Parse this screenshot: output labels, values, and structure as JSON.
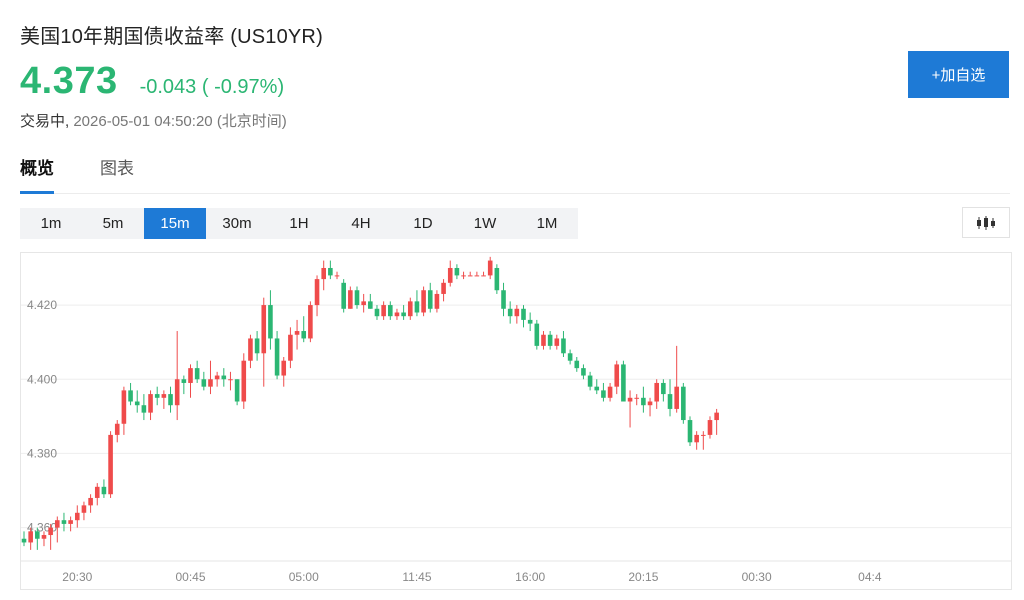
{
  "header": {
    "title": "美国10年期国债收益率 (US10YR)",
    "price": "4.373",
    "change": "-0.043 ( -0.97%)",
    "status": "交易中,",
    "timestamp": "2026-05-01 04:50:20",
    "timezone": "(北京时间)",
    "add_button": "+加自选"
  },
  "tabs": [
    {
      "label": "概览",
      "active": true
    },
    {
      "label": "图表",
      "active": false
    }
  ],
  "periods": [
    {
      "label": "1m",
      "active": false
    },
    {
      "label": "5m",
      "active": false
    },
    {
      "label": "15m",
      "active": true
    },
    {
      "label": "30m",
      "active": false
    },
    {
      "label": "1H",
      "active": false
    },
    {
      "label": "4H",
      "active": false
    },
    {
      "label": "1D",
      "active": false
    },
    {
      "label": "1W",
      "active": false
    },
    {
      "label": "1M",
      "active": false
    }
  ],
  "chart_type_icon": "candlestick-icon",
  "colors": {
    "up": "#ef4b4b",
    "down": "#2bb673",
    "accent": "#1e7ad6"
  },
  "chart_data": {
    "type": "candlestick",
    "y_ticks": [
      "4.420",
      "4.400",
      "4.380",
      "4.360"
    ],
    "y_tick_values": [
      4.42,
      4.4,
      4.38,
      4.36
    ],
    "x_ticks": [
      "20:30",
      "00:45",
      "05:00",
      "11:45",
      "16:00",
      "20:15",
      "00:30",
      "04:4"
    ],
    "x_tick_index": [
      5,
      22,
      39,
      56,
      73,
      90,
      107,
      124
    ],
    "ylim": [
      4.351,
      4.4335
    ],
    "grid": true,
    "candles": [
      [
        4.357,
        4.359,
        4.355,
        4.356
      ],
      [
        4.356,
        4.36,
        4.354,
        4.359
      ],
      [
        4.359,
        4.36,
        4.354,
        4.357
      ],
      [
        4.357,
        4.359,
        4.355,
        4.358
      ],
      [
        4.358,
        4.361,
        4.354,
        4.36
      ],
      [
        4.36,
        4.363,
        4.356,
        4.362
      ],
      [
        4.362,
        4.364,
        4.359,
        4.361
      ],
      [
        4.361,
        4.363,
        4.359,
        4.362
      ],
      [
        4.362,
        4.366,
        4.36,
        4.364
      ],
      [
        4.364,
        4.367,
        4.362,
        4.366
      ],
      [
        4.366,
        4.369,
        4.364,
        4.368
      ],
      [
        4.368,
        4.372,
        4.366,
        4.371
      ],
      [
        4.371,
        4.373,
        4.368,
        4.369
      ],
      [
        4.369,
        4.386,
        4.368,
        4.385
      ],
      [
        4.385,
        4.389,
        4.383,
        4.388
      ],
      [
        4.388,
        4.398,
        4.385,
        4.397
      ],
      [
        4.397,
        4.399,
        4.393,
        4.394
      ],
      [
        4.394,
        4.397,
        4.391,
        4.393
      ],
      [
        4.393,
        4.396,
        4.389,
        4.391
      ],
      [
        4.391,
        4.397,
        4.389,
        4.396
      ],
      [
        4.396,
        4.398,
        4.393,
        4.395
      ],
      [
        4.395,
        4.397,
        4.392,
        4.396
      ],
      [
        4.396,
        4.398,
        4.391,
        4.393
      ],
      [
        4.393,
        4.413,
        4.389,
        4.4
      ],
      [
        4.4,
        4.401,
        4.396,
        4.399
      ],
      [
        4.399,
        4.404,
        4.395,
        4.403
      ],
      [
        4.403,
        4.405,
        4.399,
        4.4
      ],
      [
        4.4,
        4.402,
        4.397,
        4.398
      ],
      [
        4.398,
        4.405,
        4.396,
        4.4
      ],
      [
        4.4,
        4.402,
        4.398,
        4.401
      ],
      [
        4.401,
        4.403,
        4.398,
        4.4
      ],
      [
        4.4,
        4.402,
        4.397,
        4.4
      ],
      [
        4.4,
        4.4,
        4.393,
        4.394
      ],
      [
        4.394,
        4.407,
        4.392,
        4.405
      ],
      [
        4.405,
        4.412,
        4.403,
        4.411
      ],
      [
        4.411,
        4.413,
        4.405,
        4.407
      ],
      [
        4.407,
        4.422,
        4.398,
        4.42
      ],
      [
        4.42,
        4.424,
        4.408,
        4.411
      ],
      [
        4.411,
        4.413,
        4.4,
        4.401
      ],
      [
        4.401,
        4.406,
        4.398,
        4.405
      ],
      [
        4.405,
        4.414,
        4.403,
        4.412
      ],
      [
        4.412,
        4.416,
        4.408,
        4.413
      ],
      [
        4.413,
        4.417,
        4.41,
        4.411
      ],
      [
        4.411,
        4.421,
        4.41,
        4.42
      ],
      [
        4.42,
        4.428,
        4.417,
        4.427
      ],
      [
        4.427,
        4.432,
        4.424,
        4.43
      ],
      [
        4.43,
        4.432,
        4.427,
        4.428
      ],
      [
        4.428,
        4.429,
        4.427,
        4.428
      ],
      [
        4.426,
        4.427,
        4.418,
        4.419
      ],
      [
        4.419,
        4.425,
        4.419,
        4.424
      ],
      [
        4.424,
        4.425,
        4.419,
        4.42
      ],
      [
        4.42,
        4.423,
        4.418,
        4.421
      ],
      [
        4.421,
        4.423,
        4.419,
        4.419
      ],
      [
        4.419,
        4.42,
        4.416,
        4.417
      ],
      [
        4.417,
        4.421,
        4.416,
        4.42
      ],
      [
        4.42,
        4.421,
        4.416,
        4.417
      ],
      [
        4.417,
        4.419,
        4.416,
        4.418
      ],
      [
        4.418,
        4.42,
        4.416,
        4.417
      ],
      [
        4.417,
        4.422,
        4.416,
        4.421
      ],
      [
        4.421,
        4.424,
        4.417,
        4.418
      ],
      [
        4.418,
        4.425,
        4.417,
        4.424
      ],
      [
        4.424,
        4.426,
        4.418,
        4.419
      ],
      [
        4.419,
        4.424,
        4.418,
        4.423
      ],
      [
        4.423,
        4.427,
        4.421,
        4.426
      ],
      [
        4.426,
        4.432,
        4.425,
        4.43
      ],
      [
        4.43,
        4.431,
        4.427,
        4.428
      ],
      [
        4.428,
        4.429,
        4.427,
        4.428
      ],
      [
        4.428,
        4.429,
        4.428,
        4.428
      ],
      [
        4.428,
        4.429,
        4.428,
        4.428
      ],
      [
        4.428,
        4.429,
        4.428,
        4.428
      ],
      [
        4.428,
        4.433,
        4.427,
        4.432
      ],
      [
        4.43,
        4.431,
        4.423,
        4.424
      ],
      [
        4.424,
        4.426,
        4.417,
        4.419
      ],
      [
        4.419,
        4.421,
        4.415,
        4.417
      ],
      [
        4.417,
        4.42,
        4.415,
        4.419
      ],
      [
        4.419,
        4.42,
        4.414,
        4.416
      ],
      [
        4.416,
        4.418,
        4.413,
        4.415
      ],
      [
        4.415,
        4.416,
        4.408,
        4.409
      ],
      [
        4.409,
        4.413,
        4.408,
        4.412
      ],
      [
        4.412,
        4.413,
        4.408,
        4.409
      ],
      [
        4.409,
        4.412,
        4.408,
        4.411
      ],
      [
        4.411,
        4.413,
        4.406,
        4.407
      ],
      [
        4.407,
        4.408,
        4.404,
        4.405
      ],
      [
        4.405,
        4.406,
        4.402,
        4.403
      ],
      [
        4.403,
        4.404,
        4.4,
        4.401
      ],
      [
        4.401,
        4.402,
        4.397,
        4.398
      ],
      [
        4.398,
        4.4,
        4.396,
        4.397
      ],
      [
        4.397,
        4.399,
        4.394,
        4.395
      ],
      [
        4.395,
        4.399,
        4.394,
        4.398
      ],
      [
        4.398,
        4.405,
        4.396,
        4.404
      ],
      [
        4.404,
        4.405,
        4.394,
        4.394
      ],
      [
        4.394,
        4.397,
        4.387,
        4.395
      ],
      [
        4.395,
        4.396,
        4.393,
        4.395
      ],
      [
        4.395,
        4.398,
        4.391,
        4.393
      ],
      [
        4.393,
        4.395,
        4.39,
        4.394
      ],
      [
        4.394,
        4.4,
        4.392,
        4.399
      ],
      [
        4.399,
        4.4,
        4.394,
        4.396
      ],
      [
        4.396,
        4.4,
        4.39,
        4.392
      ],
      [
        4.392,
        4.409,
        4.391,
        4.398
      ],
      [
        4.398,
        4.399,
        4.388,
        4.389
      ],
      [
        4.389,
        4.39,
        4.382,
        4.383
      ],
      [
        4.383,
        4.386,
        4.381,
        4.385
      ],
      [
        4.385,
        4.386,
        4.381,
        4.385
      ],
      [
        4.385,
        4.39,
        4.384,
        4.389
      ],
      [
        4.389,
        4.392,
        4.385,
        4.391
      ]
    ]
  }
}
